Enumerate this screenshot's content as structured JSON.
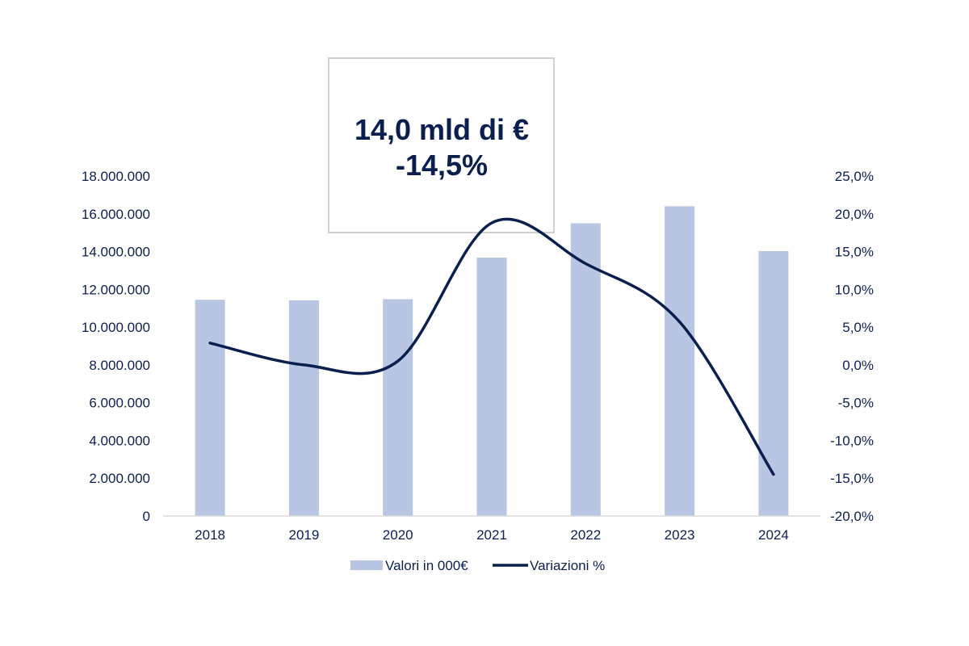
{
  "chart_data": {
    "type": "bar",
    "categories": [
      "2018",
      "2019",
      "2020",
      "2021",
      "2022",
      "2023",
      "2024"
    ],
    "series": [
      {
        "name": "Valori in 000€",
        "type": "bar",
        "axis": "left",
        "color": "#b8c5e3",
        "values": [
          11450000,
          11420000,
          11480000,
          13680000,
          15500000,
          16400000,
          14030000
        ]
      },
      {
        "name": "Variazioni %",
        "type": "line",
        "axis": "right",
        "color": "#0b1f4f",
        "smooth": true,
        "values": [
          2.9,
          0.0,
          0.5,
          18.8,
          13.4,
          5.7,
          -14.5
        ]
      }
    ],
    "y_left": {
      "ylim": [
        0,
        18000000
      ],
      "ticks": [
        0,
        2000000,
        4000000,
        6000000,
        8000000,
        10000000,
        12000000,
        14000000,
        16000000,
        18000000
      ],
      "tick_labels": [
        "0",
        "2.000.000",
        "4.000.000",
        "6.000.000",
        "8.000.000",
        "10.000.000",
        "12.000.000",
        "14.000.000",
        "16.000.000",
        "18.000.000"
      ]
    },
    "y_right": {
      "ylim": [
        -20,
        25
      ],
      "ticks": [
        -20,
        -15,
        -10,
        -5,
        0,
        5,
        10,
        15,
        20,
        25
      ],
      "tick_labels": [
        "-20,0%",
        "-15,0%",
        "-10,0%",
        "-5,0%",
        "0,0%",
        "5,0%",
        "10,0%",
        "15,0%",
        "20,0%",
        "25,0%"
      ]
    },
    "grid": false,
    "legend": {
      "position": "bottom",
      "entries": [
        "Valori in 000€",
        "Variazioni %"
      ]
    },
    "annotation": {
      "line1": "14,0 mld di €",
      "line2": "-14,5%"
    },
    "title": "",
    "xlabel": "",
    "ylabel": ""
  }
}
